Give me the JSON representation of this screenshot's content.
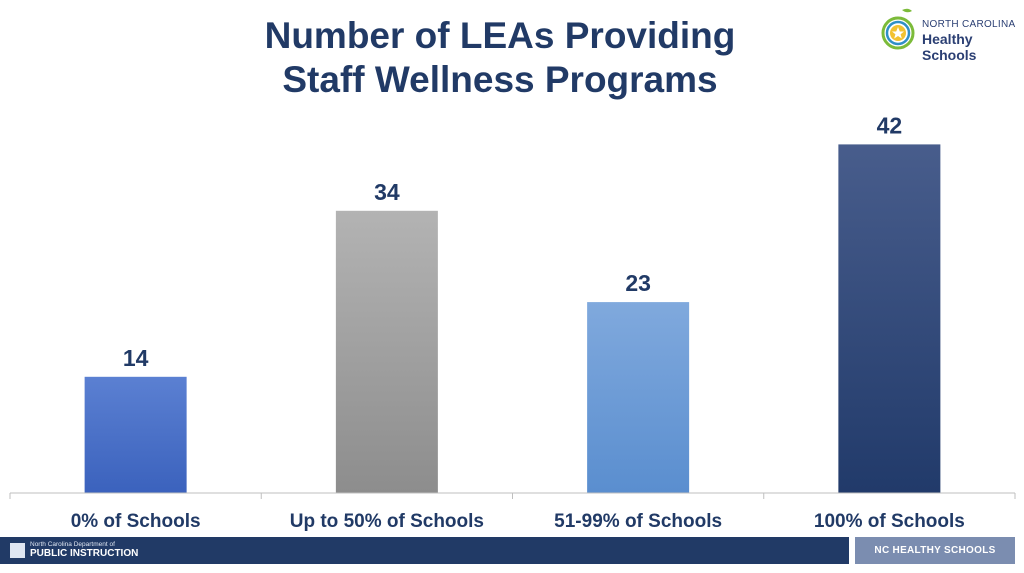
{
  "header": {
    "title_line1": "Number of LEAs Providing",
    "title_line2": "Staff Wellness Programs"
  },
  "logo": {
    "line1": "NORTH CAROLINA",
    "line2": "Healthy Schools"
  },
  "footer": {
    "dpi_line1": "North Carolina Department of",
    "dpi_line2": "PUBLIC INSTRUCTION",
    "right_label": "NC HEALTHY SCHOOLS"
  },
  "chart_data": {
    "type": "bar",
    "title": "Number of LEAs Providing Staff Wellness Programs",
    "categories": [
      "0% of Schools",
      "Up to 50% of Schools",
      "51-99% of Schools",
      "100% of Schools"
    ],
    "values": [
      14,
      34,
      23,
      42
    ],
    "colors": [
      [
        "#5b80d2",
        "#3b62bd"
      ],
      [
        "#b3b3b3",
        "#8d8d8d"
      ],
      [
        "#80a9dd",
        "#5a8ecf"
      ],
      [
        "#485d8c",
        "#213a6a"
      ]
    ],
    "xlabel": "",
    "ylabel": "",
    "ylim": [
      0,
      50
    ],
    "grid": false,
    "legend": "none"
  }
}
